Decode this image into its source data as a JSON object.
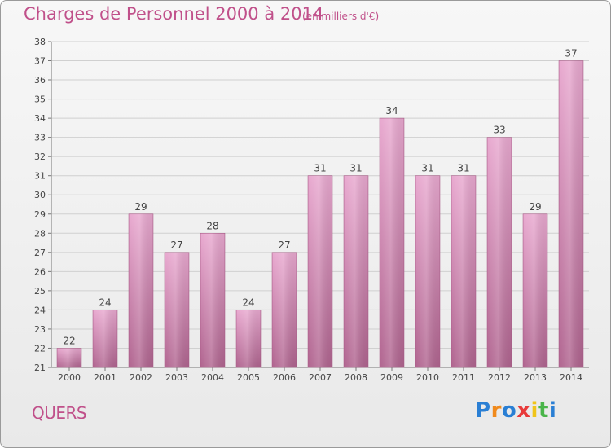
{
  "header": {
    "title": "Charges de Personnel 2000 à 2014",
    "subtitle": "(en milliers d'€)"
  },
  "footer": {
    "commune": "QUERS",
    "logo": "Proxiti",
    "logo_letters": [
      {
        "ch": "P",
        "color": "#2a7fd4"
      },
      {
        "ch": "r",
        "color": "#f08a1c"
      },
      {
        "ch": "o",
        "color": "#2a7fd4"
      },
      {
        "ch": "x",
        "color": "#e83a3a"
      },
      {
        "ch": "i",
        "color": "#f0c419"
      },
      {
        "ch": "t",
        "color": "#4ab54a"
      },
      {
        "ch": "i",
        "color": "#2a7fd4"
      }
    ]
  },
  "colors": {
    "bar_light": "#e8a8cf",
    "bar_dark": "#b0648f",
    "accent": "#c0508a"
  },
  "chart_data": {
    "type": "bar",
    "title": "Charges de Personnel 2000 à 2014",
    "subtitle": "(en milliers d'€)",
    "xlabel": "",
    "ylabel": "",
    "categories": [
      "2000",
      "2001",
      "2002",
      "2003",
      "2004",
      "2005",
      "2006",
      "2007",
      "2008",
      "2009",
      "2010",
      "2011",
      "2012",
      "2013",
      "2014"
    ],
    "values": [
      22,
      24,
      29,
      27,
      28,
      24,
      27,
      31,
      31,
      34,
      31,
      31,
      33,
      29,
      37
    ],
    "ylim": [
      21,
      38
    ],
    "yticks": [
      21,
      22,
      23,
      24,
      25,
      26,
      27,
      28,
      29,
      30,
      31,
      32,
      33,
      34,
      35,
      36,
      37,
      38
    ],
    "grid": true,
    "data_labels": true
  }
}
